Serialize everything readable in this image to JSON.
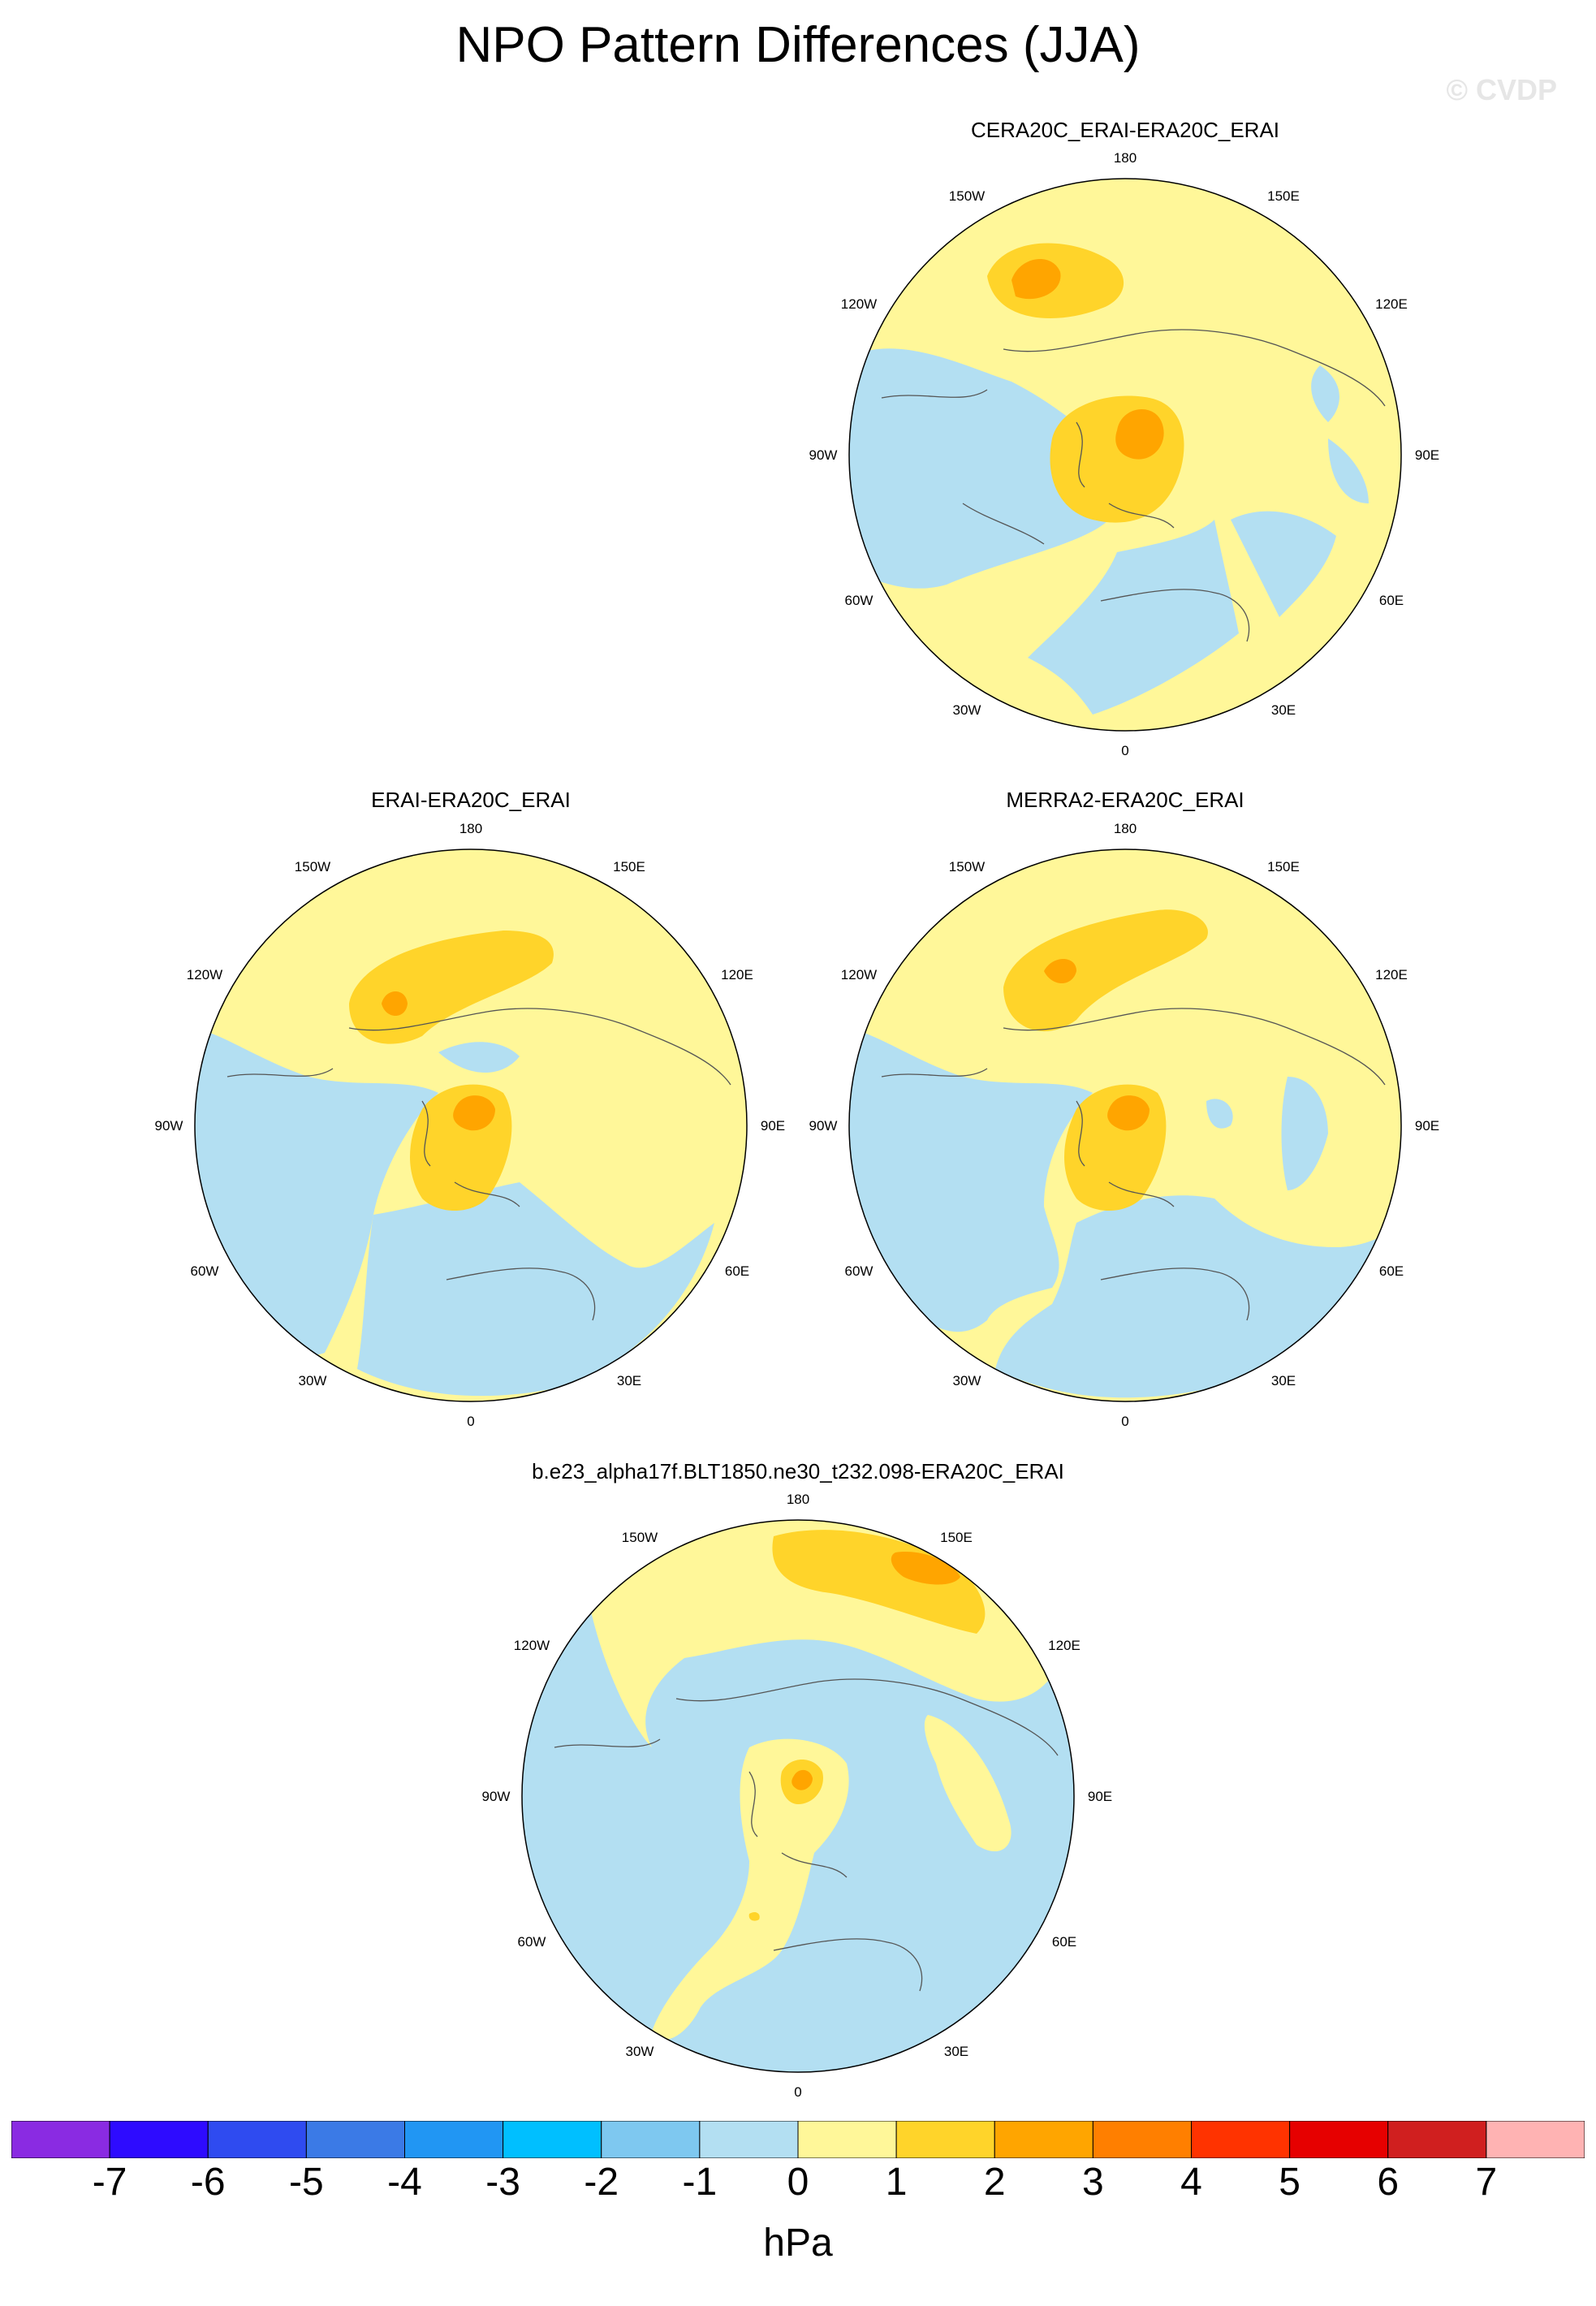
{
  "figure": {
    "title": "NPO Pattern Differences (JJA)",
    "credit": "© CVDP",
    "units": "hPa"
  },
  "panels": [
    {
      "title": "CERA20C_ERAI-ERA20C_ERAI",
      "lon_labels": {
        "n": "180",
        "nne": "150E",
        "ene": "120E",
        "e": "90E",
        "ese": "60E",
        "sse": "30E",
        "s": "0",
        "ssw": "30W",
        "wsw": "60W",
        "w": "90W",
        "wnw": "120W",
        "nnw": "150W"
      }
    },
    {
      "title": "ERAI-ERA20C_ERAI",
      "lon_labels": {
        "n": "180",
        "nne": "150E",
        "ene": "120E",
        "e": "90E",
        "ese": "60E",
        "sse": "30E",
        "s": "0",
        "ssw": "30W",
        "wsw": "60W",
        "w": "90W",
        "wnw": "120W",
        "nnw": "150W"
      }
    },
    {
      "title": "MERRA2-ERA20C_ERAI",
      "lon_labels": {
        "n": "180",
        "nne": "150E",
        "ene": "120E",
        "e": "90E",
        "ese": "60E",
        "sse": "30E",
        "s": "0",
        "ssw": "30W",
        "wsw": "60W",
        "w": "90W",
        "wnw": "120W",
        "nnw": "150W"
      }
    },
    {
      "title": "b.e23_alpha17f.BLT1850.ne30_t232.098-ERA20C_ERAI",
      "lon_labels": {
        "n": "180",
        "nne": "150E",
        "ene": "120E",
        "e": "90E",
        "ese": "60E",
        "sse": "30E",
        "s": "0",
        "ssw": "30W",
        "wsw": "60W",
        "w": "90W",
        "wnw": "120W",
        "nnw": "150W"
      }
    }
  ],
  "colorbar": {
    "colors": [
      "#8a2be2",
      "#2e0bff",
      "#2f4bf0",
      "#3b7ae6",
      "#2196f3",
      "#00bfff",
      "#7ec8f0",
      "#b3dff2",
      "#fff799",
      "#ffd42a",
      "#ffa500",
      "#ff7f00",
      "#ff3300",
      "#e60000",
      "#d01f1f",
      "#ffb3b3"
    ],
    "ticks": [
      "-7",
      "-6",
      "-5",
      "-4",
      "-3",
      "-2",
      "-1",
      "0",
      "1",
      "2",
      "3",
      "4",
      "5",
      "6",
      "7"
    ]
  },
  "legend_colors": {
    "negative_light": "#b3dff2",
    "positive_light": "#fff799",
    "positive_mid": "#ffd42a",
    "positive_strong": "#ffa500"
  }
}
